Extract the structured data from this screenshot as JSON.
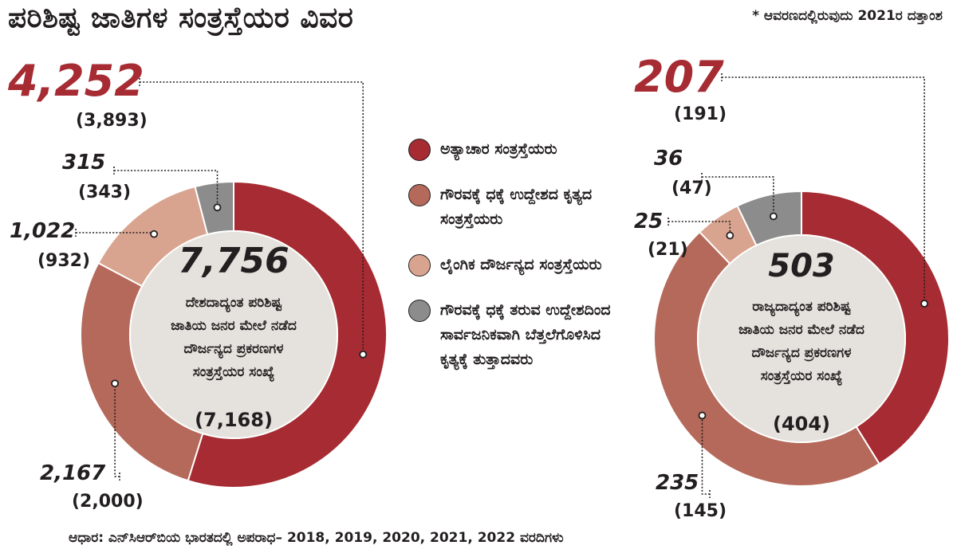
{
  "header": {
    "title": "ಪರಿಶಿಷ್ಟ ಜಾತಿಗಳ ಸಂತ್ರಸ್ತೆಯರ ವಿವರ",
    "note": "* ಆವರಣದಲ್ಲಿರುವುದು 2021ರ ದತ್ತಾಂಶ"
  },
  "source": "ಆಧಾರ: ಎನ್‌ಸಿಆರ್‌ಬಿಯ ಭಾರತದಲ್ಲಿ ಅಪರಾಧ– 2018, 2019, 2020, 2021, 2022 ವರದಿಗಳು",
  "colors": {
    "atrocity": "#a62b32",
    "insult": "#b5695a",
    "sexual": "#d9a48f",
    "public": "#8c8c8c",
    "center": "#e5e1dc",
    "highlight": "#a62b32"
  },
  "legend": [
    {
      "label": "ಅತ್ಯಾಚಾರ ಸಂತ್ರಸ್ತೆಯರು",
      "color": "#a62b32"
    },
    {
      "label": "ಗೌರವಕ್ಕೆ ಧಕ್ಕೆ ಉದ್ದೇಶದ ಕೃತ್ಯದ ಸಂತ್ರಸ್ತೆಯರು",
      "color": "#b5695a"
    },
    {
      "label": "ಲೈಂಗಿಕ ದೌರ್ಜನ್ಯದ ಸಂತ್ರಸ್ತೆಯರು",
      "color": "#d9a48f"
    },
    {
      "label": "ಗೌರವಕ್ಕೆ ಧಕ್ಕೆ ತರುವ ಉದ್ದೇಶದಿಂದ ಸಾರ್ವಜನಿಕವಾಗಿ ಬೆತ್ತಲೆಗೊಳಿಸಿದ ಕೃತ್ಯಕ್ಕೆ ತುತ್ತಾದವರು",
      "color": "#8c8c8c"
    }
  ],
  "chart_data": [
    {
      "type": "pie",
      "categories": [
        "ಅತ್ಯಾಚಾರ ಸಂತ್ರಸ್ತೆಯರು",
        "ಗೌರವಕ್ಕೆ ಧಕ್ಕೆ ಉದ್ದೇಶದ ಕೃತ್ಯದ ಸಂತ್ರಸ್ತೆಯರು",
        "ಲೈಂಗಿಕ ದೌರ್ಜನ್ಯದ ಸಂತ್ರಸ್ತೆಯರು",
        "ಗೌರವಕ್ಕೆ ಧಕ್ಕೆ ತರುವ ಉದ್ದೇಶದಿಂದ ಸಾರ್ವಜನಿಕವಾಗಿ ಬೆತ್ತಲೆಗೊಳಿಸಿದ ಕೃತ್ಯಕ್ಕೆ ತುತ್ತಾದವರು"
      ],
      "values": [
        4252,
        2167,
        1022,
        315
      ],
      "value_labels": [
        "4,252",
        "2,167",
        "1,022",
        "315"
      ],
      "previous_labels": [
        "(3,893)",
        "(2,000)",
        "(932)",
        "(343)"
      ],
      "previous_values": [
        3893,
        2000,
        932,
        343
      ],
      "total": "7,756",
      "total_previous": "(7,168)",
      "center_text": [
        "ದೇಶದಾದ್ಯಂತ ಪರಿಶಿಷ್ಟ",
        "ಜಾತಿಯ ಜನರ ಮೇಲೆ ನಡೆದ",
        "ದೌರ್ಜನ್ಯದ ಪ್ರಕರಣಗಳ",
        "ಸಂತ್ರಸ್ತೆಯರ ಸಂಖ್ಯೆ"
      ]
    },
    {
      "type": "pie",
      "categories": [
        "ಅತ್ಯಾಚಾರ ಸಂತ್ರಸ್ತೆಯರು",
        "ಗೌರವಕ್ಕೆ ಧಕ್ಕೆ ಉದ್ದೇಶದ ಕೃತ್ಯದ ಸಂತ್ರಸ್ತೆಯರು",
        "ಲೈಂಗಿಕ ದೌರ್ಜನ್ಯದ ಸಂತ್ರಸ್ತೆಯರು",
        "ಗೌರವಕ್ಕೆ ಧಕ್ಕೆ ತರುವ ಉದ್ದೇಶದಿಂದ ಸಾರ್ವಜನಿಕವಾಗಿ ಬೆತ್ತಲೆಗೊಳಿಸಿದ ಕೃತ್ಯಕ್ಕೆ ತುತ್ತಾದವರು"
      ],
      "values": [
        207,
        235,
        25,
        36
      ],
      "value_labels": [
        "207",
        "235",
        "25",
        "36"
      ],
      "previous_labels": [
        "(191)",
        "(145)",
        "(21)",
        "(47)"
      ],
      "previous_values": [
        191,
        145,
        21,
        47
      ],
      "total": "503",
      "total_previous": "(404)",
      "center_text": [
        "ರಾಜ್ಯದಾದ್ಯಂತ ಪರಿಶಿಷ್ಟ",
        "ಜಾತಿಯ ಜನರ ಮೇಲೆ ನಡೆದ",
        "ದೌರ್ಜನ್ಯದ ಪ್ರಕರಣಗಳ",
        "ಸಂತ್ರಸ್ತೆಯರ ಸಂಖ್ಯೆ"
      ]
    }
  ]
}
